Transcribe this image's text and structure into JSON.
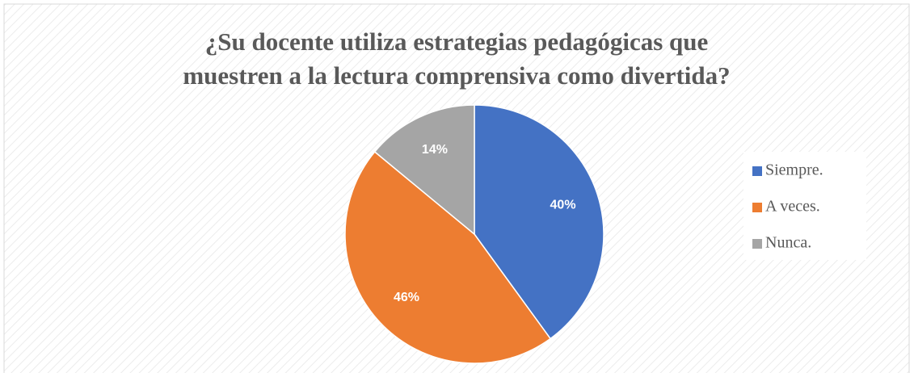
{
  "chart_data": {
    "type": "pie",
    "title": [
      "¿Su docente utiliza estrategias pedagógicas que",
      "muestren a la lectura comprensiva como divertida?"
    ],
    "categories": [
      "Siempre.",
      "A veces.",
      "Nunca."
    ],
    "values": [
      40,
      46,
      14
    ],
    "value_labels": [
      "40%",
      "46%",
      "14%"
    ],
    "colors": [
      "#4472c4",
      "#ed7d31",
      "#a5a5a5"
    ],
    "legend": "right"
  }
}
